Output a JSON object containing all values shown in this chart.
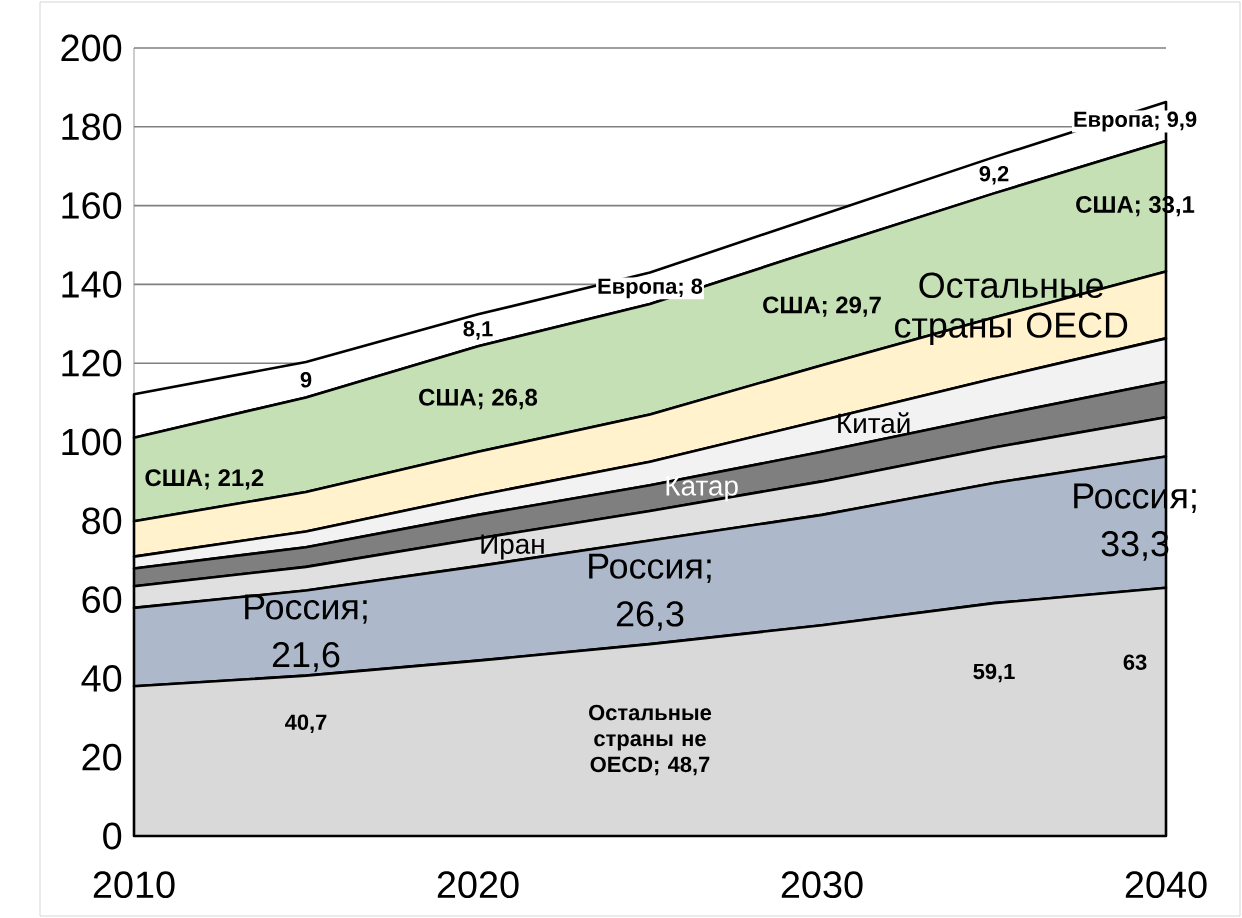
{
  "chart_data": {
    "type": "area",
    "stacked": true,
    "x": [
      2010,
      2015,
      2020,
      2025,
      2030,
      2035,
      2040
    ],
    "xlim": [
      2010,
      2040
    ],
    "xticks": [
      2010,
      2020,
      2030,
      2040
    ],
    "ylim": [
      0,
      200
    ],
    "yticks": [
      0,
      20,
      40,
      60,
      80,
      100,
      120,
      140,
      160,
      180,
      200
    ],
    "grid": "y",
    "legend": false,
    "series": [
      {
        "color": "#d9d9d9",
        "values": [
          38,
          40.7,
          44.5,
          48.7,
          53.5,
          59.1,
          63
        ],
        "value_labels": [
          null,
          "40,7",
          null,
          "Остальные страны не OECD; 48,7",
          null,
          "59,1",
          "63"
        ]
      },
      {
        "color": "#adb9ca",
        "values": [
          19.9,
          21.6,
          24,
          26.3,
          28,
          30.5,
          33.3
        ],
        "value_labels": [
          null,
          "Россия; 21,6",
          null,
          "Россия; 26,3",
          null,
          null,
          "Россия; 33,3"
        ]
      },
      {
        "name": "Иран",
        "color": "#e0e0e0",
        "values": [
          5.5,
          6,
          7,
          7.5,
          8.5,
          9,
          10
        ]
      },
      {
        "name": "Катар",
        "color": "#7f7f7f",
        "values": [
          4.5,
          5,
          6,
          6.5,
          7.5,
          8,
          9
        ]
      },
      {
        "name": "Китай",
        "color": "#f2f2f2",
        "values": [
          3,
          4,
          5,
          6,
          8,
          9.5,
          11
        ]
      },
      {
        "name": "Остальные страны OECD",
        "color": "#fff2cc",
        "values": [
          9,
          10,
          11,
          12,
          14,
          15.5,
          17
        ]
      },
      {
        "color": "#c5e0b4",
        "values": [
          21.2,
          24,
          26.8,
          28,
          29.7,
          31.5,
          33.1
        ],
        "value_labels": [
          "США; 21,2",
          null,
          "США; 26,8",
          null,
          "США; 29,7",
          null,
          "США; 33,1"
        ]
      },
      {
        "color": "#ffffff",
        "values": [
          11,
          9,
          8.1,
          8,
          8.5,
          9.2,
          9.9
        ],
        "value_labels": [
          null,
          "9",
          "8,1",
          "Европа; 8",
          null,
          "9,2",
          "Европа; 9,9"
        ]
      }
    ]
  }
}
